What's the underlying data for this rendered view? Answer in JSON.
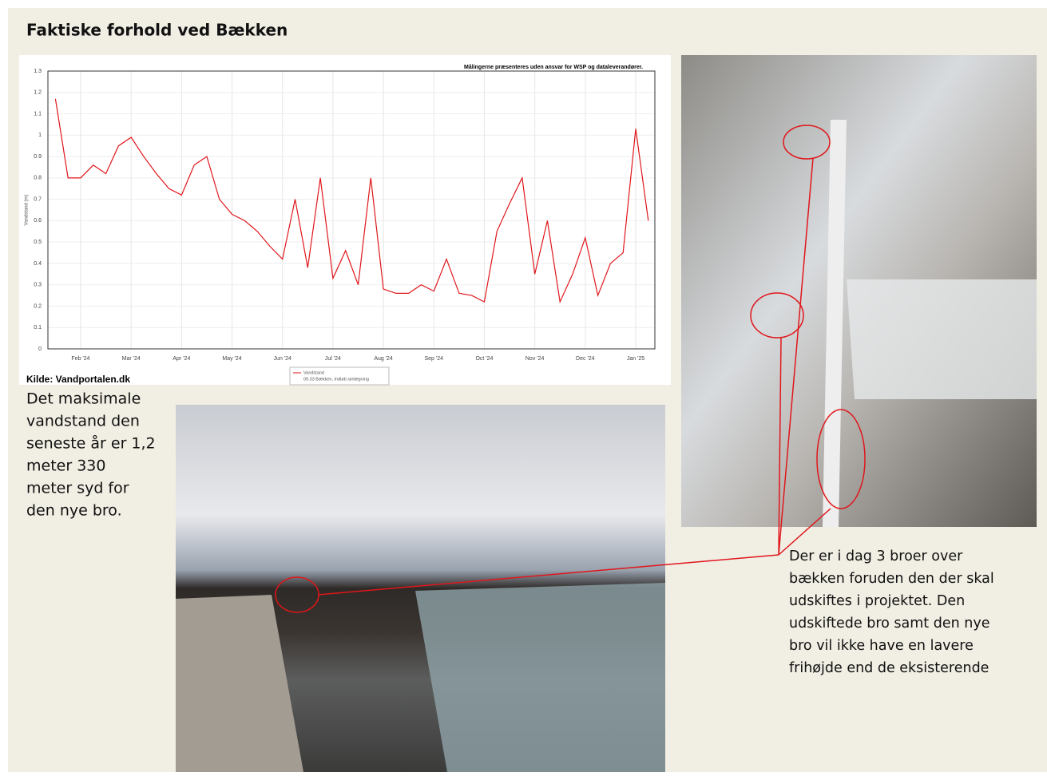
{
  "header": {
    "title": "Faktiske forhold ved Bækken"
  },
  "chart_data": {
    "type": "line",
    "note": "Målingerne præsenteres uden ansvar for WSP og dataleverandører.",
    "y_label": "Vandstand (m)",
    "categories": [
      null,
      null,
      "Feb '24",
      null,
      null,
      null,
      "Mar '24",
      null,
      null,
      null,
      "Apr '24",
      null,
      null,
      null,
      "May '24",
      null,
      null,
      null,
      "Jun '24",
      null,
      null,
      null,
      "Jul '24",
      null,
      null,
      null,
      "Aug '24",
      null,
      null,
      null,
      "Sep '24",
      null,
      null,
      null,
      "Oct '24",
      null,
      null,
      null,
      "Nov '24",
      null,
      null,
      null,
      "Dec '24",
      null,
      null,
      null,
      "Jan '25",
      null
    ],
    "series": [
      {
        "name": "Vandstand",
        "color": "#e0161b",
        "values": [
          1.17,
          0.8,
          0.8,
          0.86,
          0.82,
          0.95,
          0.99,
          0.9,
          0.82,
          0.75,
          0.72,
          0.86,
          0.9,
          0.7,
          0.63,
          0.6,
          0.55,
          0.48,
          0.42,
          0.7,
          0.38,
          0.8,
          0.33,
          0.46,
          0.3,
          0.8,
          0.28,
          0.26,
          0.26,
          0.3,
          0.27,
          0.42,
          0.26,
          0.25,
          0.22,
          0.55,
          0.68,
          0.8,
          0.35,
          0.6,
          0.22,
          0.35,
          0.52,
          0.25,
          0.4,
          0.45,
          1.03,
          0.6
        ]
      }
    ],
    "legend_subtitle": "09.33 Bækken, Indløb rørlægning",
    "ylim": [
      0,
      1.3
    ],
    "yticks": [
      0,
      0.1,
      0.2,
      0.3,
      0.4,
      0.5,
      0.6,
      0.7,
      0.8,
      0.9,
      1,
      1.1,
      1.2,
      1.3
    ],
    "grid": true
  },
  "source": "Kilde: Vandportalen.dk",
  "left_text": [
    "Det maksimale",
    "vandstand den",
    "seneste år er 1,2",
    "meter 330",
    "meter syd for",
    "den nye bro."
  ],
  "right_text": [
    "Der er i dag 3 broer over",
    "bækken foruden den der skal",
    "udskiftes i projektet. Den",
    "udskiftede bro samt den nye",
    "bro vil ikke have en lavere",
    "frihøjde end de eksisterende"
  ]
}
